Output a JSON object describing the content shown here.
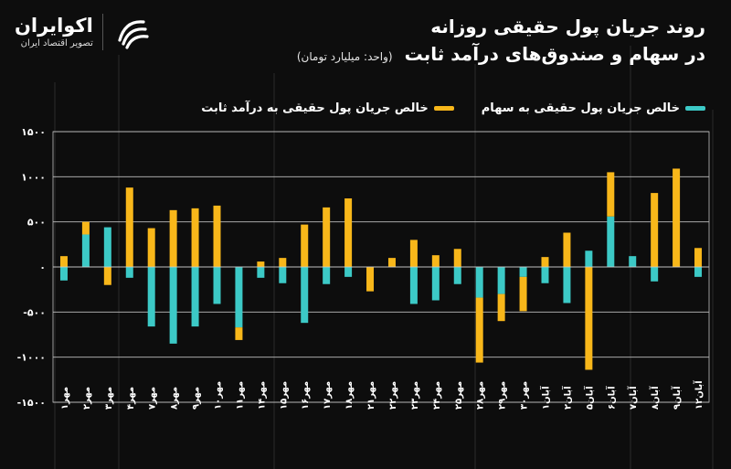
{
  "header": {
    "title_line1": "روند جریان پول حقیقی روزانه",
    "title_line2": "در سهام و صندوق‌های درآمد ثابت",
    "unit": "(واحد: میلیارد تومان)"
  },
  "brand": {
    "name": "اکوایران",
    "tagline": "تصویر اقتصاد ایران",
    "logo_icon": "ecoiran-swirl-logo"
  },
  "colors": {
    "background": "#0d0d0d",
    "stocks": "#3cc9c6",
    "fixed_income": "#f8b71a",
    "grid": "#bfbfbf",
    "text": "#ffffff"
  },
  "chart_data": {
    "type": "bar",
    "stacked": true,
    "categories": [
      "مهر۱",
      "مهر۲",
      "مهر۳",
      "مهر۴",
      "مهر۷",
      "مهر۸",
      "مهر۹",
      "مهر۱۰",
      "مهر۱۱",
      "مهر۱۴",
      "مهر۱۵",
      "مهر۱۶",
      "مهر۱۷",
      "مهر۱۸",
      "مهر۲۱",
      "مهر۲۲",
      "مهر۲۳",
      "مهر۲۴",
      "مهر۲۵",
      "مهر۲۸",
      "مهر۲۹",
      "مهر۳۰",
      "آبان۱",
      "آبان۲",
      "آبان۵",
      "آبان۶",
      "آبان۷",
      "آبان۸",
      "آبان۹",
      "آبان۱۲"
    ],
    "series": [
      {
        "name": "خالص جریان پول حقیقی به سهام",
        "color": "#3cc9c6",
        "values": [
          -150,
          360,
          440,
          -120,
          -660,
          -850,
          -660,
          -410,
          -670,
          -120,
          -180,
          -620,
          -190,
          -110,
          0,
          0,
          -410,
          -370,
          -190,
          -340,
          -300,
          -110,
          -180,
          -400,
          180,
          560,
          120,
          -160,
          0,
          -110
        ]
      },
      {
        "name": "خالص جریان پول حقیقی به درآمد ثابت",
        "color": "#f8b71a",
        "values": [
          120,
          140,
          -200,
          880,
          430,
          630,
          650,
          680,
          -140,
          60,
          100,
          470,
          660,
          760,
          -270,
          100,
          300,
          130,
          200,
          -720,
          -300,
          -380,
          110,
          380,
          -1140,
          490,
          0,
          820,
          1090,
          210
        ]
      }
    ],
    "yticks": [
      1500,
      1000,
      500,
      0,
      -500,
      -1000,
      -1500
    ],
    "ytick_labels": [
      "۱۵۰۰",
      "۱۰۰۰",
      "۵۰۰",
      "۰",
      "-۵۰۰",
      "-۱۰۰۰",
      "-۱۵۰۰"
    ],
    "ylim": [
      -1500,
      1500
    ],
    "xlabel": "",
    "ylabel": "",
    "grid": true,
    "legend_position": "top-right"
  }
}
